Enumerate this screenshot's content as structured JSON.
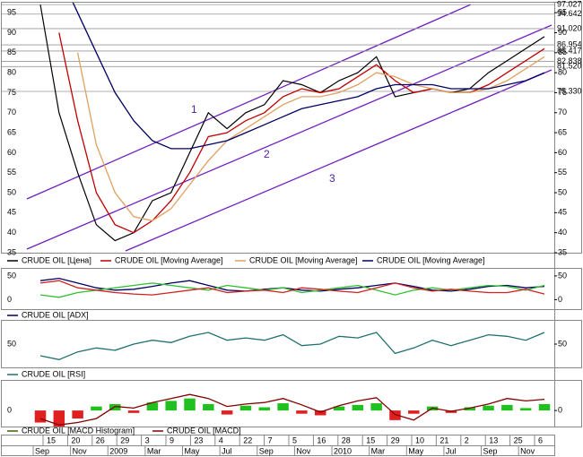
{
  "chart_data": [
    {
      "type": "line",
      "categories": [
        "Sep",
        null,
        "Nov",
        null,
        "2009",
        null,
        "Mar",
        null,
        "May",
        null,
        "Jul",
        null,
        "Sep",
        null,
        "Nov",
        null,
        "2010",
        null,
        "Mar",
        null,
        "May",
        null,
        "Jul",
        null,
        "Sep",
        null,
        "Nov",
        null
      ],
      "series": [
        {
          "name": "CRUDE OIL [Цена]",
          "color": "#000000",
          "values": [
            97,
            70,
            55,
            42,
            38,
            40,
            48,
            50,
            60,
            70,
            66,
            70,
            72,
            78,
            77,
            75,
            78,
            80,
            84,
            74,
            75,
            76,
            75,
            76,
            80,
            83,
            86,
            89
          ]
        },
        {
          "name": "CRUDE OIL [Moving Average]",
          "color": "#c00000",
          "values": [
            null,
            90,
            68,
            50,
            42,
            40,
            43,
            48,
            55,
            64,
            65,
            68,
            70,
            74,
            76,
            75,
            76,
            79,
            82,
            78,
            75,
            76,
            75,
            75,
            77,
            80,
            83,
            86
          ]
        },
        {
          "name": "CRUDE OIL [Moving Average]",
          "color": "#e0a060",
          "values": [
            null,
            null,
            85,
            62,
            50,
            44,
            43,
            46,
            52,
            58,
            63,
            66,
            69,
            72,
            74,
            74,
            75,
            77,
            80,
            79,
            77,
            76,
            75,
            75,
            76,
            78,
            81,
            84
          ]
        },
        {
          "name": "CRUDE OIL [Moving Average]",
          "color": "#000060",
          "values": [
            null,
            105,
            95,
            85,
            75,
            68,
            63,
            61,
            61,
            62,
            63,
            65,
            67,
            69,
            71,
            72,
            73,
            74,
            76,
            77,
            77,
            77,
            76,
            76,
            76,
            77,
            78,
            80
          ]
        }
      ],
      "ylim": [
        35,
        97.5
      ],
      "yticks": [
        35,
        40,
        45,
        50,
        55,
        60,
        65,
        70,
        75,
        80,
        85,
        90,
        95
      ],
      "levels": [
        97.027,
        94.642,
        {
          "value": 91.02,
          "label": "91.020"
        },
        86.954,
        85.417,
        82.838,
        {
          "value": 81.52,
          "label": "81.520"
        },
        {
          "value": 75.33,
          "label": "75.330"
        }
      ],
      "annotations": [
        "1",
        "2",
        "3"
      ]
    },
    {
      "type": "line",
      "series": [
        {
          "name": "CRUDE OIL [ADX]",
          "color": "#000060",
          "values": [
            40,
            45,
            35,
            25,
            20,
            22,
            28,
            35,
            40,
            30,
            20,
            18,
            22,
            25,
            20,
            18,
            22,
            25,
            30,
            35,
            28,
            20,
            18,
            22,
            28,
            30,
            25,
            28
          ]
        },
        {
          "color": "#30c030",
          "values": [
            10,
            5,
            15,
            20,
            25,
            30,
            35,
            30,
            25,
            20,
            30,
            25,
            20,
            25,
            15,
            20,
            25,
            30,
            20,
            10,
            20,
            25,
            20,
            25,
            30,
            28,
            20,
            30
          ]
        },
        {
          "color": "#d02020",
          "values": [
            35,
            40,
            25,
            20,
            15,
            12,
            10,
            15,
            20,
            25,
            15,
            18,
            20,
            15,
            25,
            22,
            18,
            15,
            25,
            35,
            25,
            18,
            22,
            18,
            15,
            15,
            22,
            12
          ]
        }
      ],
      "ylim": [
        -20,
        65
      ],
      "yticks": [
        0,
        50
      ]
    },
    {
      "type": "line",
      "series": [
        {
          "name": "CRUDE OIL [RSI]",
          "color": "#207070",
          "values": [
            35,
            30,
            40,
            45,
            42,
            50,
            55,
            52,
            60,
            65,
            55,
            58,
            55,
            62,
            48,
            50,
            60,
            58,
            65,
            38,
            45,
            55,
            48,
            55,
            62,
            60,
            55,
            65
          ]
        }
      ],
      "ylim": [
        20,
        80
      ],
      "yticks": [
        50
      ]
    },
    {
      "type": "macd",
      "series": [
        {
          "name": "CRUDE OIL [MACD Histogram]",
          "kind": "bar",
          "color": "#406000",
          "up_color": "#20c020",
          "down_color": "#e02020",
          "values": [
            -1.5,
            -2,
            -1,
            0.5,
            0.8,
            -0.3,
            1,
            1.2,
            1.5,
            0.8,
            -0.5,
            0.6,
            0.4,
            0.9,
            -0.4,
            -0.6,
            0.5,
            0.7,
            0.9,
            -1.2,
            -0.4,
            0.5,
            -0.3,
            0.4,
            0.6,
            0.7,
            0.3,
            0.8
          ]
        },
        {
          "name": "CRUDE OIL [MACD]",
          "color": "#800000",
          "values": [
            -1,
            -1.8,
            -1.5,
            -1,
            0.5,
            0.3,
            1,
            1.5,
            2,
            1.5,
            0.5,
            0.8,
            1,
            1.5,
            0.7,
            -0.2,
            0.6,
            1.2,
            1.6,
            -0.5,
            -1.2,
            0.3,
            -0.1,
            0.3,
            0.8,
            1.5,
            1.2,
            1.4
          ]
        }
      ],
      "ylim": [
        -2,
        3.7
      ],
      "yticks": [
        0
      ]
    }
  ],
  "date_labels": [
    "15",
    "20",
    "26",
    "29",
    "3",
    "9",
    "23",
    "4",
    "22",
    "7",
    "5",
    "16",
    "28",
    "15",
    "29",
    "10",
    "21",
    "2",
    "13",
    "25",
    "6"
  ]
}
